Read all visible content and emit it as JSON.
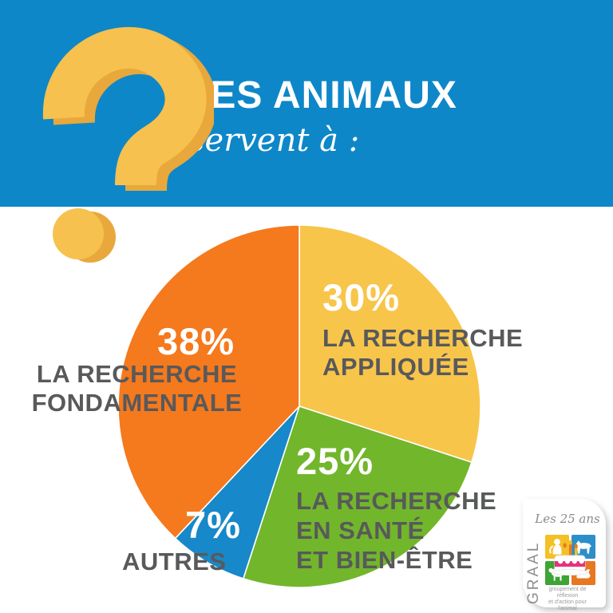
{
  "header": {
    "title": "LES ANIMAUX",
    "subtitle": "servent à :",
    "bg_color": "#0E87C8"
  },
  "question_mark": {
    "color": "#F6C14E",
    "shade_color": "#E8A83C"
  },
  "chart_data": {
    "type": "pie",
    "title": "Les animaux servent à :",
    "start_angle_deg": 0,
    "clockwise": true,
    "legend_position": "on-slice",
    "slices": [
      {
        "id": "appliquee",
        "pct_label": "30%",
        "value": 30,
        "color": "#F8C54B",
        "label": "LA RECHERCHE APPLIQUÉE",
        "display_lines": [
          "LA RECHERCHE",
          "APPLIQUÉE"
        ]
      },
      {
        "id": "sante",
        "pct_label": "25%",
        "value": 25,
        "color": "#72B62C",
        "label": "LA RECHERCHE EN SANTÉ ET BIEN-ÊTRE",
        "display_lines": [
          "LA RECHERCHE",
          "EN SANTÉ",
          "ET BIEN-ÊTRE"
        ]
      },
      {
        "id": "autres",
        "pct_label": "7%",
        "value": 7,
        "color": "#1788C9",
        "label": "AUTRES",
        "display_lines": [
          "AUTRES"
        ]
      },
      {
        "id": "fondamentale",
        "pct_label": "38%",
        "value": 38,
        "color": "#F5791D",
        "label": "LA RECHERCHE FONDAMENTALE",
        "display_lines": [
          "LA RECHERCHE",
          "FONDAMENTALE"
        ]
      }
    ],
    "value_text_color": "#FFFFFF",
    "label_text_color": "#58595B"
  },
  "logo": {
    "anniversary": "Les 25 ans",
    "org": "GRAAL",
    "tagline_line1": "groupement de réflexion",
    "tagline_line2": "et d'action pour l'animal",
    "colors": {
      "yellow": "#F4C025",
      "blue": "#2C8FC9",
      "green": "#3DA435",
      "orange": "#E87722",
      "pink": "#E5327D"
    }
  }
}
